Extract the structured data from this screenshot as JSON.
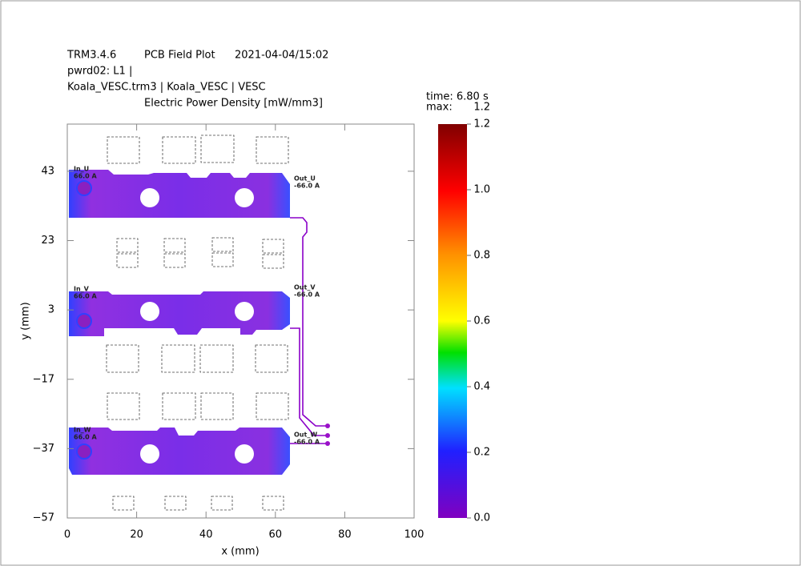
{
  "chart_data": {
    "type": "field",
    "header": [
      "TRM3.4.6",
      "PCB Field Plot",
      "2021-04-04/15:02",
      "pwrd02: L1  |",
      "Koala_VESC.trm3 | Koala_VESC | VESC"
    ],
    "title": "Electric Power Density [mW/mm3]",
    "time_label": "time: 6.80 s",
    "max_label": "max:",
    "max": 1.2,
    "x_label": "x (mm)",
    "y_label": "y (mm)",
    "xlim": [
      0,
      100
    ],
    "ylim": [
      -57,
      56.6
    ],
    "xticks": [
      0,
      20,
      40,
      60,
      80,
      100
    ],
    "yticks": [
      {
        "value": -57,
        "label": "−57"
      },
      {
        "value": -37,
        "label": "−37"
      },
      {
        "value": -17,
        "label": "−17"
      },
      3,
      23,
      43
    ],
    "colorbar": {
      "range": [
        0,
        1.2
      ],
      "ticks": [
        {
          "value": 0,
          "label": "0.0"
        },
        {
          "value": 0.2,
          "label": "0.2"
        },
        {
          "value": 0.4,
          "label": "0.4"
        },
        {
          "value": 0.6,
          "label": "0.6"
        },
        {
          "value": 0.8,
          "label": "0.8"
        },
        {
          "value": 1,
          "label": "1.0"
        },
        {
          "value": 1.2,
          "label": "1.2"
        }
      ]
    },
    "annotations": [
      "In_U",
      "66.0 A",
      "Out_U",
      "-66.0 A",
      "In_V",
      "66.0 A",
      "Out_V",
      "-66.0 A",
      "In_W",
      "66.0 A",
      "Out_W",
      "-66.0 A"
    ]
  }
}
